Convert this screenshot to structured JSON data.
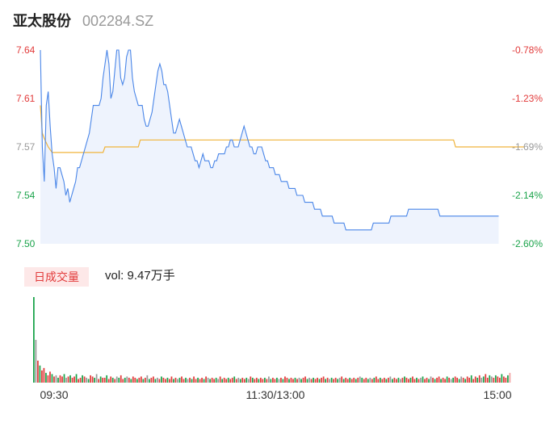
{
  "header": {
    "name": "亚太股份",
    "code": "002284.SZ"
  },
  "volume": {
    "label": "日成交量",
    "vol_text": "vol: 9.47万手"
  },
  "colors": {
    "price_line": "#4a86e8",
    "avg_line": "#f0b43c",
    "up": "#e23b3b",
    "down": "#1aa34a",
    "neutral": "#999999",
    "area": "#eef3fd"
  },
  "chart_data": [
    {
      "type": "line",
      "title": "",
      "x_ticks": [
        "09:30",
        "11:30/13:00",
        "15:00"
      ],
      "y_left_ticks": [
        "7.64",
        "7.61",
        "7.57",
        "7.54",
        "7.50"
      ],
      "y_right_ticks": [
        "-0.78%",
        "-1.23%",
        "-1.69%",
        "-2.14%",
        "-2.60%"
      ],
      "ylim": [
        7.5,
        7.64
      ],
      "x_count": 241,
      "series": [
        {
          "name": "price",
          "values": [
            7.64,
            7.57,
            7.545,
            7.6,
            7.61,
            7.585,
            7.565,
            7.555,
            7.54,
            7.555,
            7.555,
            7.55,
            7.545,
            7.535,
            7.54,
            7.53,
            7.535,
            7.54,
            7.545,
            7.555,
            7.555,
            7.56,
            7.565,
            7.57,
            7.575,
            7.58,
            7.59,
            7.6,
            7.6,
            7.6,
            7.6,
            7.605,
            7.62,
            7.63,
            7.64,
            7.63,
            7.605,
            7.61,
            7.625,
            7.64,
            7.64,
            7.62,
            7.615,
            7.62,
            7.635,
            7.64,
            7.64,
            7.62,
            7.61,
            7.605,
            7.6,
            7.6,
            7.6,
            7.59,
            7.585,
            7.585,
            7.59,
            7.595,
            7.605,
            7.615,
            7.625,
            7.63,
            7.625,
            7.615,
            7.615,
            7.61,
            7.6,
            7.59,
            7.58,
            7.58,
            7.585,
            7.59,
            7.585,
            7.58,
            7.575,
            7.57,
            7.57,
            7.57,
            7.565,
            7.56,
            7.56,
            7.555,
            7.56,
            7.565,
            7.56,
            7.56,
            7.56,
            7.555,
            7.555,
            7.56,
            7.56,
            7.565,
            7.565,
            7.565,
            7.565,
            7.57,
            7.57,
            7.575,
            7.575,
            7.57,
            7.57,
            7.57,
            7.575,
            7.58,
            7.585,
            7.58,
            7.575,
            7.57,
            7.57,
            7.565,
            7.565,
            7.57,
            7.57,
            7.57,
            7.565,
            7.56,
            7.56,
            7.555,
            7.555,
            7.555,
            7.55,
            7.55,
            7.55,
            7.545,
            7.545,
            7.545,
            7.545,
            7.54,
            7.54,
            7.54,
            7.54,
            7.535,
            7.535,
            7.535,
            7.535,
            7.53,
            7.53,
            7.53,
            7.53,
            7.53,
            7.525,
            7.525,
            7.525,
            7.525,
            7.52,
            7.52,
            7.52,
            7.52,
            7.52,
            7.52,
            7.515,
            7.515,
            7.515,
            7.515,
            7.515,
            7.515,
            7.51,
            7.51,
            7.51,
            7.51,
            7.51,
            7.51,
            7.51,
            7.51,
            7.51,
            7.51,
            7.51,
            7.51,
            7.51,
            7.51,
            7.515,
            7.515,
            7.515,
            7.515,
            7.515,
            7.515,
            7.515,
            7.515,
            7.515,
            7.52,
            7.52,
            7.52,
            7.52,
            7.52,
            7.52,
            7.52,
            7.52,
            7.52,
            7.525,
            7.525,
            7.525,
            7.525,
            7.525,
            7.525,
            7.525,
            7.525,
            7.525,
            7.525,
            7.525,
            7.525,
            7.525,
            7.525,
            7.525,
            7.525,
            7.52,
            7.52,
            7.52,
            7.52,
            7.52,
            7.52,
            7.52,
            7.52,
            7.52,
            7.52,
            7.52,
            7.52,
            7.52,
            7.52,
            7.52,
            7.52,
            7.52,
            7.52,
            7.52,
            7.52,
            7.52,
            7.52,
            7.52,
            7.52,
            7.52,
            7.52,
            7.52,
            7.52,
            7.52,
            7.52,
            7.52
          ]
        },
        {
          "name": "avg",
          "values": [
            7.6,
            7.58,
            7.576,
            7.573,
            7.57,
            7.568,
            7.566,
            7.566,
            7.566,
            7.566,
            7.566,
            7.566,
            7.566,
            7.566,
            7.566,
            7.566,
            7.566,
            7.566,
            7.566,
            7.566,
            7.566,
            7.566,
            7.566,
            7.566,
            7.566,
            7.566,
            7.566,
            7.566,
            7.566,
            7.566,
            7.566,
            7.566,
            7.566,
            7.57,
            7.57,
            7.57,
            7.57,
            7.57,
            7.57,
            7.57,
            7.57,
            7.57,
            7.57,
            7.57,
            7.57,
            7.57,
            7.57,
            7.57,
            7.57,
            7.57,
            7.57,
            7.575,
            7.575,
            7.575,
            7.575,
            7.575,
            7.575,
            7.575,
            7.575,
            7.575,
            7.575,
            7.575,
            7.575,
            7.575,
            7.575,
            7.575,
            7.575,
            7.575,
            7.575,
            7.575,
            7.575,
            7.575,
            7.575,
            7.575,
            7.575,
            7.575,
            7.575,
            7.575,
            7.575,
            7.575,
            7.575,
            7.575,
            7.575,
            7.575,
            7.575,
            7.575,
            7.575,
            7.575,
            7.575,
            7.575,
            7.575,
            7.575,
            7.575,
            7.575,
            7.575,
            7.575,
            7.575,
            7.575,
            7.575,
            7.575,
            7.575,
            7.575,
            7.575,
            7.575,
            7.575,
            7.575,
            7.575,
            7.575,
            7.575,
            7.575,
            7.575,
            7.575,
            7.575,
            7.575,
            7.575,
            7.575,
            7.575,
            7.575,
            7.575,
            7.575,
            7.575,
            7.575,
            7.575,
            7.575,
            7.575,
            7.575,
            7.575,
            7.575,
            7.575,
            7.575,
            7.575,
            7.575,
            7.575,
            7.575,
            7.575,
            7.575,
            7.575,
            7.575,
            7.575,
            7.575,
            7.575,
            7.575,
            7.575,
            7.575,
            7.575,
            7.575,
            7.575,
            7.575,
            7.575,
            7.575,
            7.575,
            7.575,
            7.575,
            7.575,
            7.575,
            7.575,
            7.575,
            7.575,
            7.575,
            7.575,
            7.575,
            7.575,
            7.575,
            7.575,
            7.575,
            7.575,
            7.575,
            7.575,
            7.575,
            7.575,
            7.575,
            7.575,
            7.575,
            7.575,
            7.575,
            7.575,
            7.575,
            7.575,
            7.575,
            7.575,
            7.575,
            7.575,
            7.575,
            7.575,
            7.575,
            7.575,
            7.575,
            7.575,
            7.575,
            7.575,
            7.575,
            7.575,
            7.575,
            7.575,
            7.575,
            7.575,
            7.575,
            7.575,
            7.575,
            7.575,
            7.575,
            7.575,
            7.575,
            7.575,
            7.575,
            7.575,
            7.575,
            7.575,
            7.575,
            7.575,
            7.575,
            7.575,
            7.57,
            7.57,
            7.57,
            7.57,
            7.57,
            7.57,
            7.57,
            7.57,
            7.57,
            7.57,
            7.57,
            7.57,
            7.57,
            7.57,
            7.57,
            7.57,
            7.57,
            7.57,
            7.57,
            7.57,
            7.57,
            7.57,
            7.57,
            7.57,
            7.57,
            7.57,
            7.57,
            7.57,
            7.57,
            7.57,
            7.57,
            7.57,
            7.57,
            7.57,
            7.57,
            7.57
          ]
        }
      ],
      "grid": false,
      "legend": "none"
    },
    {
      "type": "bar",
      "title": "",
      "values": [
        70,
        35,
        18,
        14,
        10,
        12,
        8,
        6,
        9,
        7,
        5,
        6,
        4,
        6,
        5,
        7,
        4,
        5,
        6,
        4,
        5,
        7,
        3,
        4,
        6,
        5,
        4,
        3,
        6,
        5,
        4,
        7,
        3,
        5,
        4,
        4,
        6,
        3,
        5,
        4,
        3,
        5,
        4,
        6,
        3,
        4,
        5,
        4,
        3,
        5,
        4,
        3,
        4,
        5,
        3,
        4,
        6,
        3,
        4,
        5,
        3,
        4,
        3,
        5,
        4,
        3,
        4,
        3,
        5,
        3,
        4,
        3,
        4,
        5,
        3,
        4,
        3,
        4,
        3,
        5,
        3,
        4,
        3,
        4,
        3,
        5,
        4,
        3,
        4,
        3,
        4,
        3,
        5,
        3,
        4,
        3,
        4,
        3,
        4,
        5,
        3,
        4,
        3,
        4,
        3,
        4,
        3,
        5,
        4,
        3,
        4,
        3,
        4,
        3,
        4,
        3,
        5,
        3,
        4,
        3,
        4,
        3,
        4,
        3,
        5,
        4,
        3,
        4,
        3,
        4,
        3,
        4,
        3,
        4,
        5,
        3,
        4,
        3,
        4,
        3,
        4,
        3,
        4,
        5,
        3,
        4,
        3,
        4,
        3,
        4,
        3,
        4,
        5,
        3,
        4,
        3,
        4,
        3,
        4,
        3,
        4,
        5,
        4,
        3,
        4,
        3,
        4,
        3,
        4,
        5,
        3,
        4,
        3,
        4,
        3,
        4,
        5,
        3,
        4,
        3,
        4,
        3,
        4,
        5,
        4,
        3,
        4,
        5,
        3,
        4,
        3,
        4,
        5,
        3,
        4,
        3,
        5,
        4,
        3,
        4,
        5,
        3,
        4,
        3,
        5,
        4,
        3,
        4,
        5,
        4,
        3,
        5,
        4,
        3,
        5,
        4,
        6,
        3,
        5,
        4,
        6,
        4,
        5,
        7,
        4,
        6,
        5,
        4,
        6,
        5,
        4,
        7,
        5,
        4,
        6,
        8
      ],
      "colors_pattern": "mixed",
      "grid": false,
      "legend": "none"
    }
  ]
}
